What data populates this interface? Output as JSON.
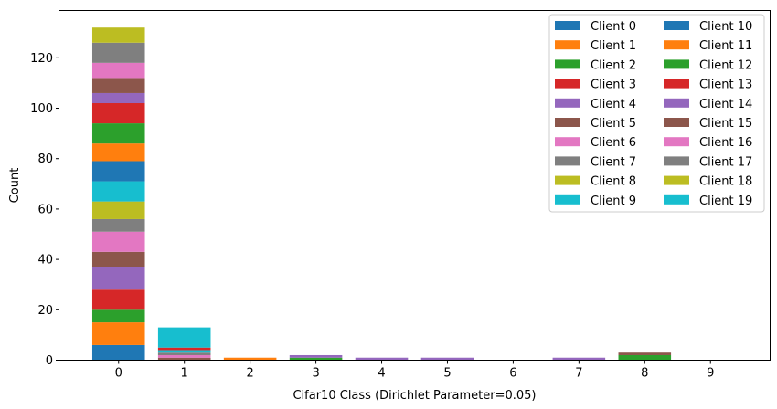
{
  "chart_data": {
    "type": "bar",
    "stacked": true,
    "title": "",
    "xlabel": "Cifar10 Class (Dirichlet Parameter=0.05)",
    "ylabel": "Count",
    "categories": [
      "0",
      "1",
      "2",
      "3",
      "4",
      "5",
      "6",
      "7",
      "8",
      "9"
    ],
    "ylim": [
      0,
      138.6
    ],
    "yticks": [
      0,
      20,
      40,
      60,
      80,
      100,
      120
    ],
    "grid": false,
    "legend": {
      "placement": "top-right",
      "columns": 2
    },
    "series": [
      {
        "name": "Client 0",
        "color": "#1f77b4",
        "values": [
          6,
          0,
          0,
          0,
          0,
          0,
          0,
          0,
          0,
          0
        ]
      },
      {
        "name": "Client 1",
        "color": "#ff7f0e",
        "values": [
          9,
          0,
          1,
          0,
          0,
          0,
          0,
          0,
          0,
          0
        ]
      },
      {
        "name": "Client 2",
        "color": "#2ca02c",
        "values": [
          5,
          0,
          0,
          1,
          0,
          0,
          0,
          0,
          2,
          0
        ]
      },
      {
        "name": "Client 3",
        "color": "#d62728",
        "values": [
          8,
          0,
          0,
          0,
          0,
          0,
          0,
          0,
          0,
          0
        ]
      },
      {
        "name": "Client 4",
        "color": "#9467bd",
        "values": [
          9,
          0,
          0,
          1,
          1,
          1,
          0,
          1,
          0,
          0
        ]
      },
      {
        "name": "Client 5",
        "color": "#8c564b",
        "values": [
          6,
          1,
          0,
          0,
          0,
          0,
          0,
          0,
          1,
          0
        ]
      },
      {
        "name": "Client 6",
        "color": "#e377c2",
        "values": [
          8,
          1,
          0,
          0,
          0,
          0,
          0,
          0,
          0,
          0
        ]
      },
      {
        "name": "Client 7",
        "color": "#7f7f7f",
        "values": [
          5,
          1,
          0,
          0,
          0,
          0,
          0,
          0,
          0,
          0
        ]
      },
      {
        "name": "Client 8",
        "color": "#bcbd22",
        "values": [
          7,
          0,
          0,
          0,
          0,
          0,
          0,
          0,
          0,
          0
        ]
      },
      {
        "name": "Client 9",
        "color": "#17becf",
        "values": [
          8,
          1,
          0,
          0,
          0,
          0,
          0,
          0,
          0,
          0
        ]
      },
      {
        "name": "Client 10",
        "color": "#1f77b4",
        "values": [
          8,
          0,
          0,
          0,
          0,
          0,
          0,
          0,
          0,
          0
        ]
      },
      {
        "name": "Client 11",
        "color": "#ff7f0e",
        "values": [
          7,
          0,
          0,
          0,
          0,
          0,
          0,
          0,
          0,
          0
        ]
      },
      {
        "name": "Client 12",
        "color": "#2ca02c",
        "values": [
          8,
          0,
          0,
          0,
          0,
          0,
          0,
          0,
          0,
          0
        ]
      },
      {
        "name": "Client 13",
        "color": "#d62728",
        "values": [
          8,
          1,
          0,
          0,
          0,
          0,
          0,
          0,
          0,
          0
        ]
      },
      {
        "name": "Client 14",
        "color": "#9467bd",
        "values": [
          4,
          0,
          0,
          0,
          0,
          0,
          0,
          0,
          0,
          0
        ]
      },
      {
        "name": "Client 15",
        "color": "#8c564b",
        "values": [
          6,
          0,
          0,
          0,
          0,
          0,
          0,
          0,
          0,
          0
        ]
      },
      {
        "name": "Client 16",
        "color": "#e377c2",
        "values": [
          6,
          0,
          0,
          0,
          0,
          0,
          0,
          0,
          0,
          0
        ]
      },
      {
        "name": "Client 17",
        "color": "#7f7f7f",
        "values": [
          8,
          0,
          0,
          0,
          0,
          0,
          0,
          0,
          0,
          0
        ]
      },
      {
        "name": "Client 18",
        "color": "#bcbd22",
        "values": [
          6,
          0,
          0,
          0,
          0,
          0,
          0,
          0,
          0,
          0
        ]
      },
      {
        "name": "Client 19",
        "color": "#17becf",
        "values": [
          0,
          8,
          0,
          0,
          0,
          0,
          0,
          0,
          0,
          0
        ]
      }
    ]
  }
}
